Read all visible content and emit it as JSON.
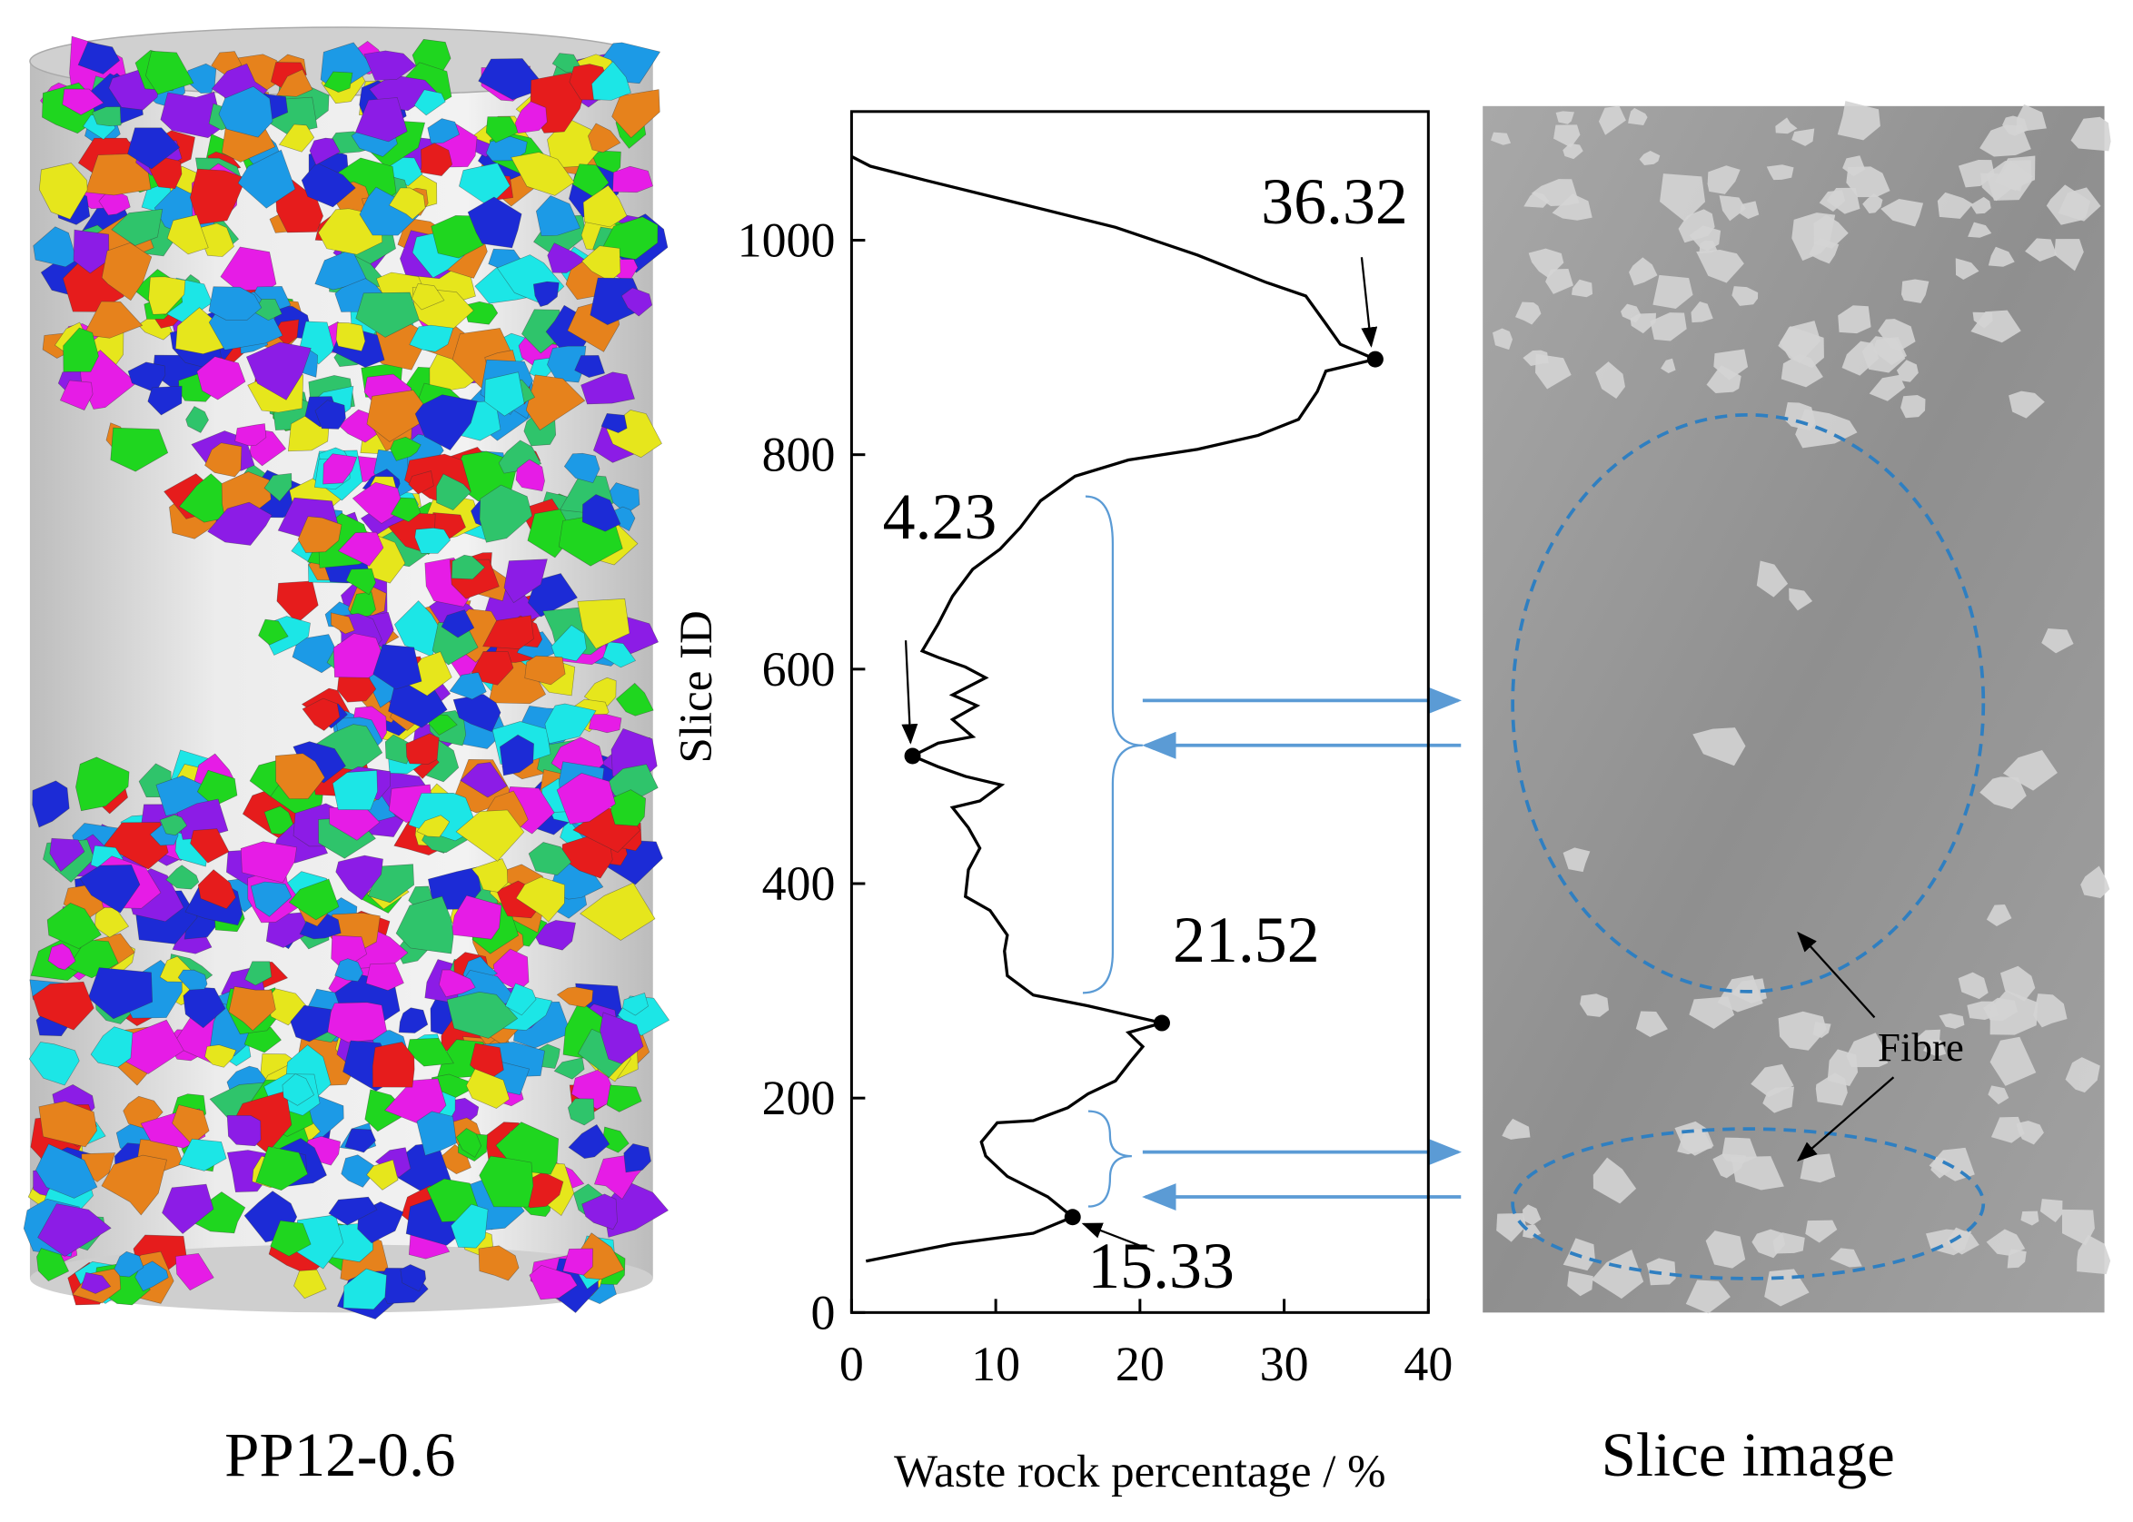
{
  "chart_data": {
    "type": "line",
    "xlabel": "Waste rock percentage / %",
    "ylabel": "Slice ID",
    "xlim": [
      0,
      40
    ],
    "ylim": [
      0,
      1120
    ],
    "xticks": [
      0,
      10,
      20,
      30,
      40
    ],
    "yticks": [
      0,
      200,
      400,
      600,
      800,
      1000
    ],
    "color": "#000000",
    "series": [
      {
        "values": [
          1.0,
          7,
          12.6,
          15.33,
          13.6,
          10.8,
          9.3,
          9,
          10.1,
          12.6,
          15,
          16.4,
          18.3,
          19.4,
          20.2,
          19.2,
          21.52,
          16.4,
          12.6,
          10.8,
          10.6,
          10.8,
          9.6,
          7.9,
          8.1,
          8.9,
          8.1,
          7,
          8.9,
          10.4,
          7.9,
          6,
          4.23,
          6,
          8.4,
          7,
          8.7,
          7,
          9.3,
          7.9,
          6,
          4.9,
          6,
          7,
          8.4,
          10.3,
          11.7,
          13.1,
          15.5,
          19.2,
          24,
          28.2,
          31,
          32.3,
          32.9,
          36.32,
          33.9,
          32.9,
          31.5,
          28.7,
          24,
          18.3,
          10.8,
          5.1,
          1.3,
          0
        ],
        "slices": [
          48,
          64,
          74,
          89,
          108,
          127,
          146,
          159,
          177,
          179,
          191,
          204,
          216,
          235,
          248,
          261,
          270,
          286,
          296,
          314,
          337,
          352,
          375,
          388,
          413,
          433,
          452,
          471,
          477,
          492,
          500,
          509,
          519,
          531,
          537,
          553,
          566,
          576,
          592,
          602,
          611,
          617,
          642,
          668,
          693,
          712,
          732,
          757,
          780,
          795,
          805,
          818,
          833,
          859,
          878,
          889,
          903,
          922,
          948,
          961,
          986,
          1012,
          1037,
          1056,
          1069,
          1078
        ]
      }
    ],
    "markers": [
      {
        "value": 36.32,
        "slice": 889
      },
      {
        "value": 4.23,
        "slice": 519
      },
      {
        "value": 21.52,
        "slice": 270
      },
      {
        "value": 15.33,
        "slice": 89
      }
    ]
  },
  "left_caption": "PP12-0.6",
  "right_caption": "Slice image",
  "fibre_label": "Fibre"
}
